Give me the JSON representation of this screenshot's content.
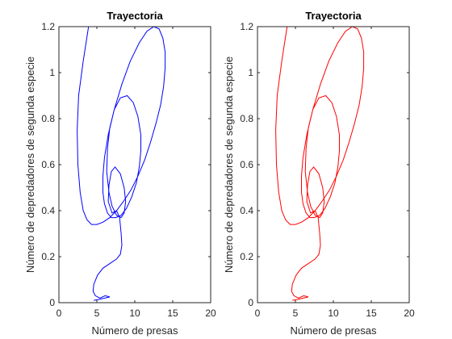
{
  "chart_data": [
    {
      "type": "line",
      "title": "Trayectoria",
      "xlabel": "Número de presas",
      "ylabel": "Número de depredadores de segunda especie",
      "xlim": [
        0,
        20
      ],
      "ylim": [
        0,
        1.2
      ],
      "xticks": [
        "0",
        "5",
        "10",
        "15",
        "20"
      ],
      "yticks": [
        "0",
        "0.2",
        "0.4",
        "0.6",
        "0.8",
        "1",
        "1.2"
      ],
      "grid": false,
      "line_color": "#0000ff",
      "series": [
        {
          "x": [
            3.9,
            3.2,
            2.6,
            2.4,
            2.5,
            2.8,
            3.2,
            3.7,
            4.3,
            5.0,
            5.8,
            6.7,
            7.6,
            8.5,
            9.5,
            10.4,
            11.3,
            12.1,
            12.8,
            13.4,
            13.8,
            14.0,
            14.0,
            13.7,
            13.2,
            12.5,
            11.6,
            10.6,
            9.4,
            8.3,
            7.3,
            6.5,
            6.0,
            5.8,
            5.8,
            6.0,
            6.4,
            6.9,
            7.5,
            8.2,
            8.9,
            9.6,
            10.2,
            10.6,
            10.8,
            10.8,
            10.4,
            9.8,
            9.0,
            8.1,
            7.3,
            6.7,
            6.4,
            6.3,
            6.6,
            7.0,
            7.6,
            8.2,
            8.6,
            8.8,
            8.6,
            8.1,
            7.4,
            6.9,
            6.6,
            6.5,
            7.0,
            7.6,
            8.0,
            8.2,
            8.3,
            8.1,
            7.6,
            6.7,
            5.8,
            5.1,
            4.6,
            4.5,
            4.8,
            5.4,
            6.1,
            6.7,
            5.4,
            4.6
          ],
          "y": [
            1.2,
            1.05,
            0.9,
            0.75,
            0.6,
            0.48,
            0.4,
            0.36,
            0.34,
            0.34,
            0.35,
            0.37,
            0.4,
            0.44,
            0.49,
            0.55,
            0.62,
            0.7,
            0.78,
            0.86,
            0.94,
            1.02,
            1.09,
            1.15,
            1.19,
            1.2,
            1.18,
            1.13,
            1.05,
            0.95,
            0.84,
            0.73,
            0.63,
            0.55,
            0.48,
            0.43,
            0.39,
            0.37,
            0.37,
            0.38,
            0.41,
            0.46,
            0.52,
            0.59,
            0.66,
            0.73,
            0.81,
            0.87,
            0.9,
            0.89,
            0.84,
            0.76,
            0.67,
            0.57,
            0.48,
            0.42,
            0.38,
            0.37,
            0.39,
            0.44,
            0.5,
            0.56,
            0.59,
            0.57,
            0.51,
            0.44,
            0.39,
            0.4,
            0.37,
            0.3,
            0.25,
            0.21,
            0.19,
            0.17,
            0.15,
            0.12,
            0.08,
            0.05,
            0.03,
            0.02,
            0.03,
            0.025,
            0.015,
            0.01
          ]
        }
      ]
    },
    {
      "type": "line",
      "title": "Trayectoria",
      "xlabel": "Número de presas",
      "ylabel": "Número de depredadores de segunda especie",
      "xlim": [
        0,
        20
      ],
      "ylim": [
        0,
        1.2
      ],
      "xticks": [
        "0",
        "5",
        "10",
        "15",
        "20"
      ],
      "yticks": [
        "0",
        "0.2",
        "0.4",
        "0.6",
        "0.8",
        "1",
        "1.2"
      ],
      "grid": false,
      "line_color": "#ff0000",
      "series": [
        {
          "x": [
            3.9,
            3.2,
            2.6,
            2.4,
            2.5,
            2.8,
            3.2,
            3.7,
            4.3,
            5.0,
            5.8,
            6.7,
            7.6,
            8.5,
            9.5,
            10.4,
            11.3,
            12.1,
            12.8,
            13.4,
            13.8,
            14.0,
            14.0,
            13.7,
            13.2,
            12.5,
            11.6,
            10.6,
            9.4,
            8.3,
            7.3,
            6.5,
            6.0,
            5.8,
            5.8,
            6.0,
            6.4,
            6.9,
            7.5,
            8.2,
            8.9,
            9.6,
            10.2,
            10.6,
            10.8,
            10.8,
            10.4,
            9.8,
            9.0,
            8.1,
            7.3,
            6.7,
            6.4,
            6.3,
            6.6,
            7.0,
            7.6,
            8.2,
            8.6,
            8.8,
            8.6,
            8.1,
            7.4,
            6.9,
            6.6,
            6.5,
            7.0,
            7.6,
            8.0,
            8.2,
            8.3,
            8.1,
            7.6,
            6.7,
            5.8,
            5.1,
            4.6,
            4.5,
            4.8,
            5.4,
            6.1,
            6.7,
            5.4,
            4.6
          ],
          "y": [
            1.2,
            1.05,
            0.9,
            0.75,
            0.6,
            0.48,
            0.4,
            0.36,
            0.34,
            0.34,
            0.35,
            0.37,
            0.4,
            0.44,
            0.49,
            0.55,
            0.62,
            0.7,
            0.78,
            0.86,
            0.94,
            1.02,
            1.09,
            1.15,
            1.19,
            1.2,
            1.18,
            1.13,
            1.05,
            0.95,
            0.84,
            0.73,
            0.63,
            0.55,
            0.48,
            0.43,
            0.39,
            0.37,
            0.37,
            0.38,
            0.41,
            0.46,
            0.52,
            0.59,
            0.66,
            0.73,
            0.81,
            0.87,
            0.9,
            0.89,
            0.84,
            0.76,
            0.67,
            0.57,
            0.48,
            0.42,
            0.38,
            0.37,
            0.39,
            0.44,
            0.5,
            0.56,
            0.59,
            0.57,
            0.51,
            0.44,
            0.39,
            0.4,
            0.37,
            0.3,
            0.25,
            0.21,
            0.19,
            0.17,
            0.15,
            0.12,
            0.08,
            0.05,
            0.03,
            0.02,
            0.03,
            0.025,
            0.015,
            0.01
          ]
        }
      ]
    }
  ]
}
